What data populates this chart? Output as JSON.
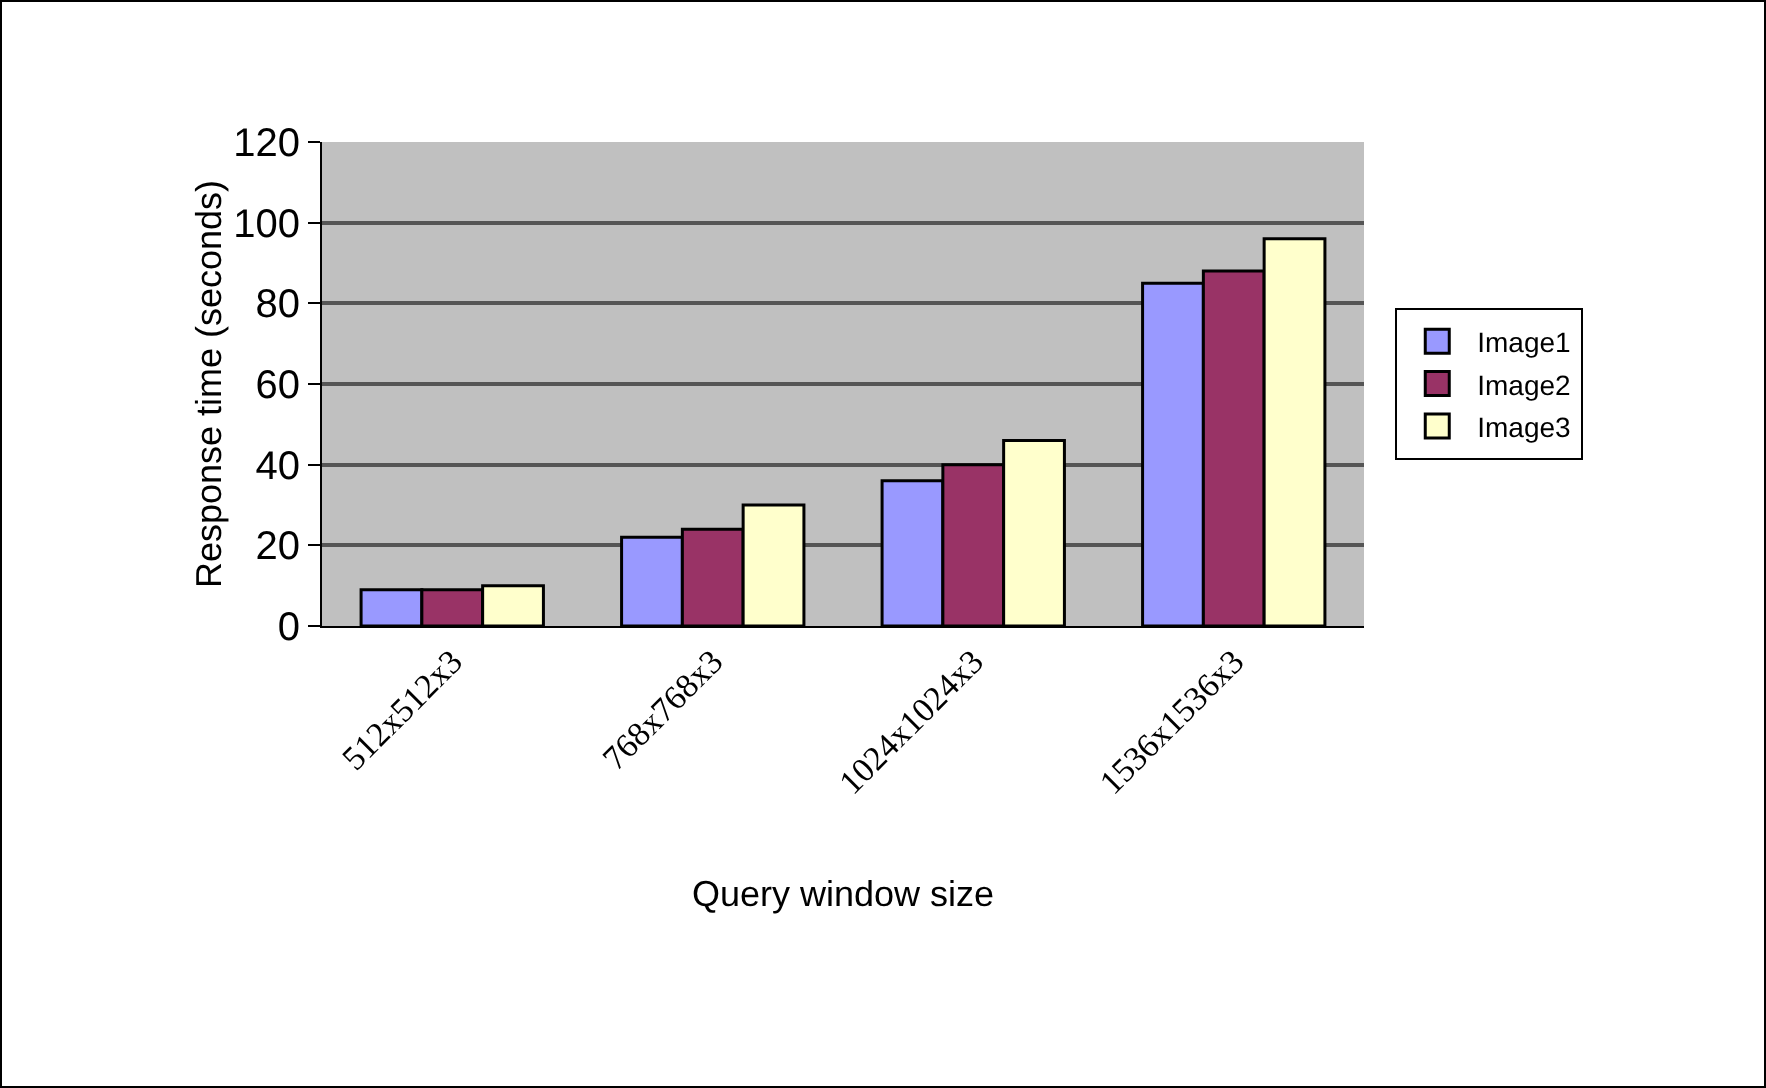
{
  "chart_data": {
    "type": "bar",
    "xlabel": "Query window size",
    "ylabel": "Response time (seconds)",
    "categories": [
      "512x512x3",
      "768x768x3",
      "1024x1024x3",
      "1536x1536x3"
    ],
    "series": [
      {
        "name": "Image1",
        "color": "#9999ff",
        "values": [
          9,
          22,
          36,
          85
        ]
      },
      {
        "name": "Image2",
        "color": "#993366",
        "values": [
          9,
          24,
          40,
          88
        ]
      },
      {
        "name": "Image3",
        "color": "#ffffcc",
        "values": [
          10,
          30,
          46,
          96
        ]
      }
    ],
    "ylim": [
      0,
      120
    ],
    "yticks": [
      0,
      20,
      40,
      60,
      80,
      100,
      120
    ],
    "grid": "y",
    "legend": "right"
  }
}
